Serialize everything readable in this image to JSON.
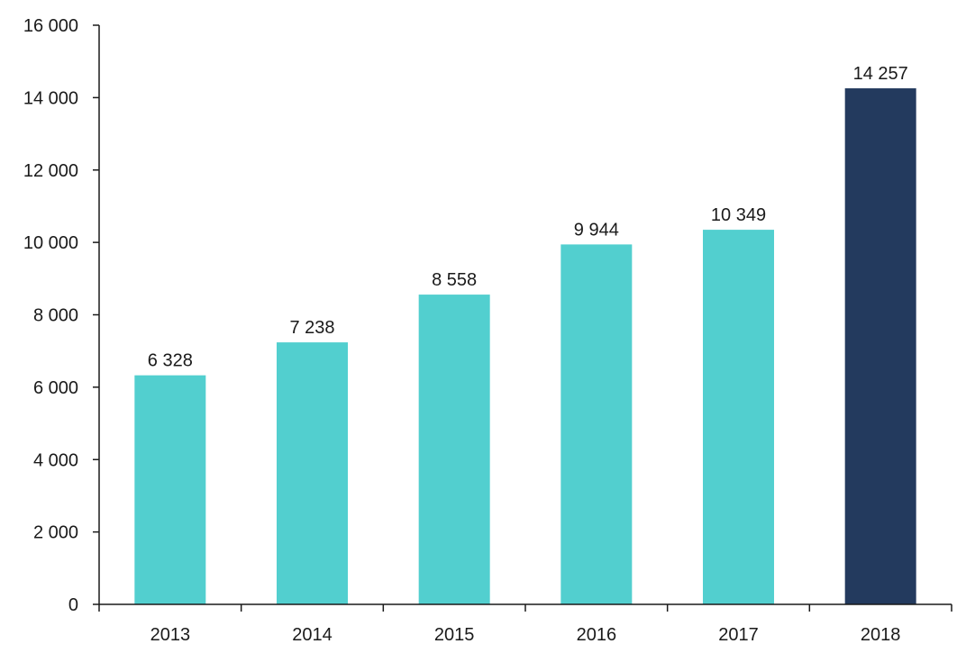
{
  "chart_data": {
    "type": "bar",
    "categories": [
      "2013",
      "2014",
      "2015",
      "2016",
      "2017",
      "2018"
    ],
    "values": [
      6328,
      7238,
      8558,
      9944,
      10349,
      14257
    ],
    "value_labels": [
      "6 328",
      "7 238",
      "8 558",
      "9 944",
      "10 349",
      "14 257"
    ],
    "title": "",
    "xlabel": "",
    "ylabel": "",
    "ylim": [
      0,
      16000
    ],
    "yticks": [
      0,
      2000,
      4000,
      6000,
      8000,
      10000,
      12000,
      14000,
      16000
    ],
    "ytick_labels": [
      "0",
      "2 000",
      "4 000",
      "6 000",
      "8 000",
      "10 000",
      "12 000",
      "14 000",
      "16 000"
    ],
    "grid": false,
    "legend": "none",
    "colors": {
      "bar": "#52cfcf",
      "highlight": "#233a5e",
      "axis": "#1a1a1a"
    },
    "highlight_index": 5
  }
}
